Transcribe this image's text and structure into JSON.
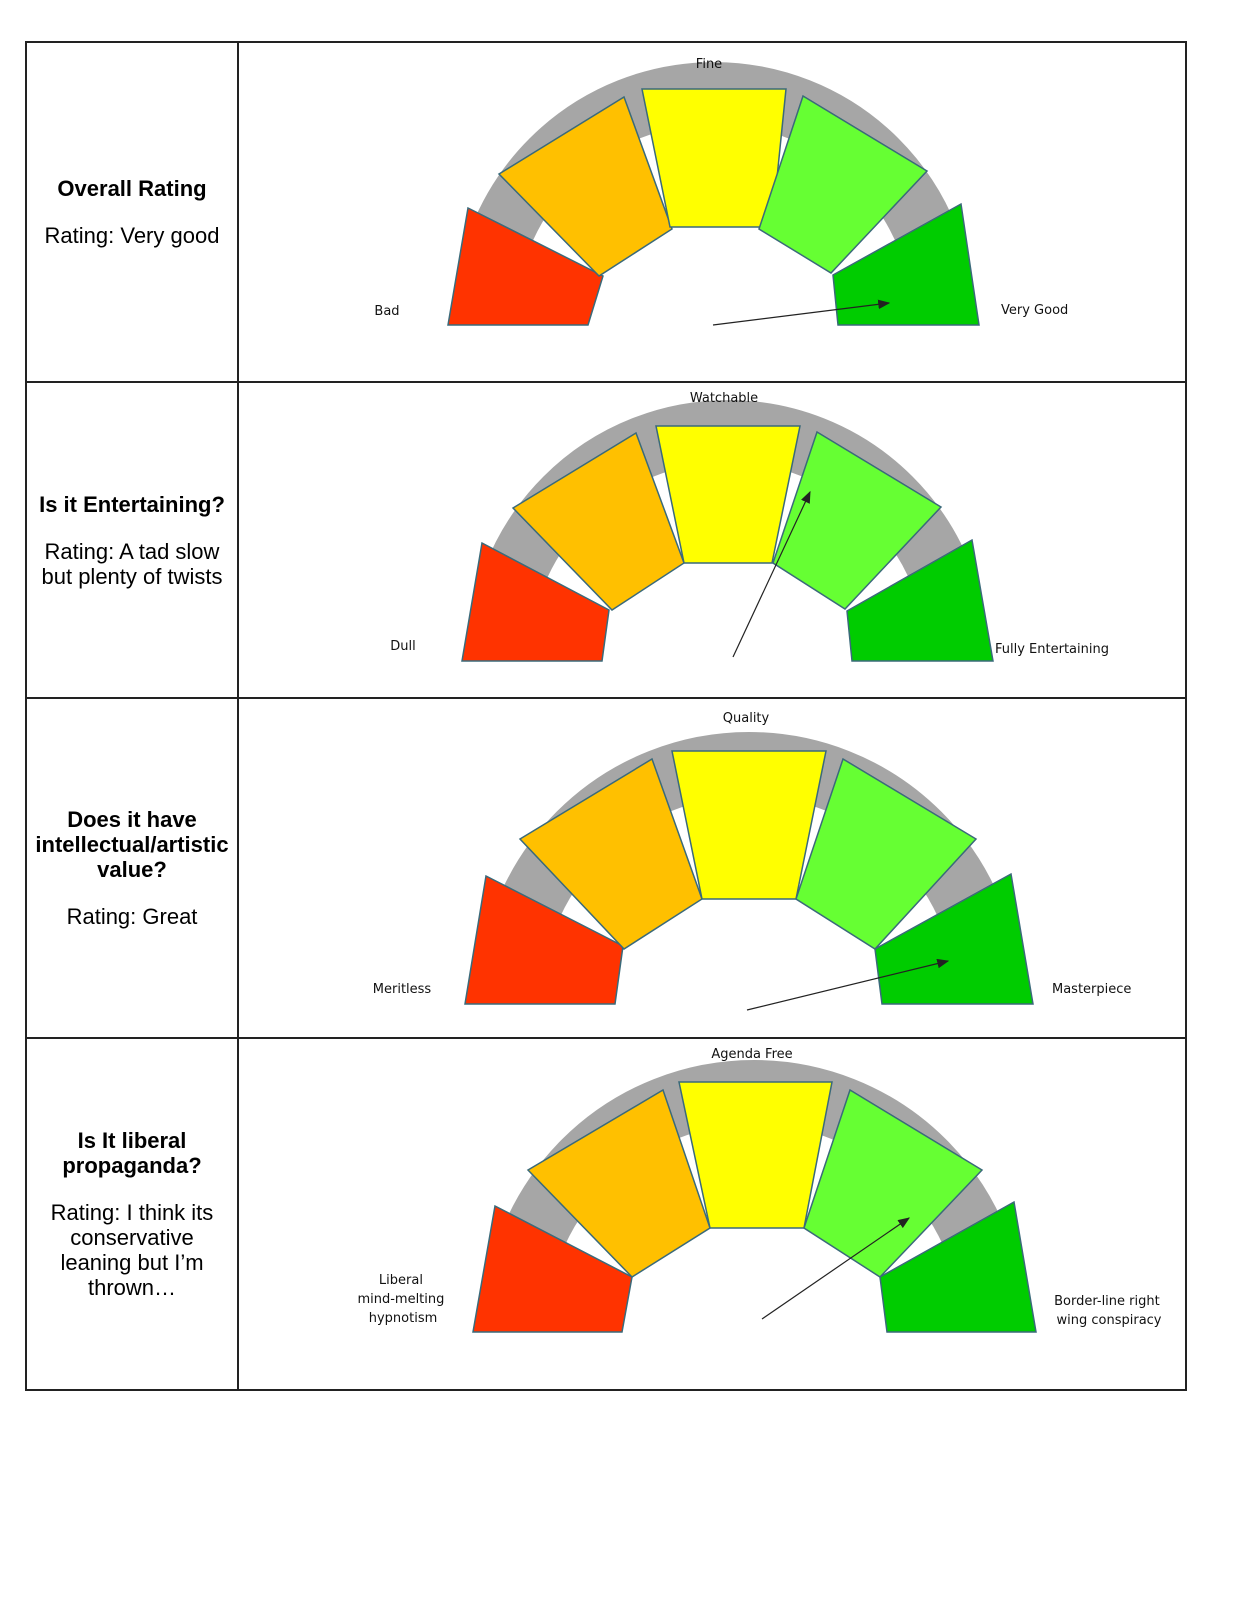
{
  "rows": [
    {
      "question": "Overall Rating",
      "rating": "Rating: Very good",
      "labels": {
        "left": [
          "Bad"
        ],
        "top": "Fine",
        "right": [
          "Very Good"
        ]
      },
      "needle_position": "very-good segment"
    },
    {
      "question": "Is it Entertaining?",
      "rating": "Rating: A tad slow but plenty of twists",
      "labels": {
        "left": [
          "Dull"
        ],
        "top": "Watchable",
        "right": [
          "Fully Entertaining"
        ]
      },
      "needle_position": "between watchable and good segments"
    },
    {
      "question": "Does it have intellectual/artistic value?",
      "rating": "Rating:  Great",
      "labels": {
        "left": [
          "Meritless"
        ],
        "top": "Quality",
        "right": [
          "Masterpiece"
        ]
      },
      "needle_position": "very-good segment"
    },
    {
      "question": "Is It liberal propaganda?",
      "rating": "Rating: I think its conservative leaning but I’m thrown…",
      "labels": {
        "left": [
          "Liberal",
          "mind-melting",
          "hypnotism"
        ],
        "top": "Agenda Free",
        "right": [
          "Border-line right",
          "wing conspiracy"
        ]
      },
      "needle_position": "good segment"
    }
  ],
  "segment_colors": [
    "#ff3300",
    "#ffc000",
    "#ffff00",
    "#66ff33",
    "#00cc00"
  ],
  "arc_color": "#a6a6a6"
}
